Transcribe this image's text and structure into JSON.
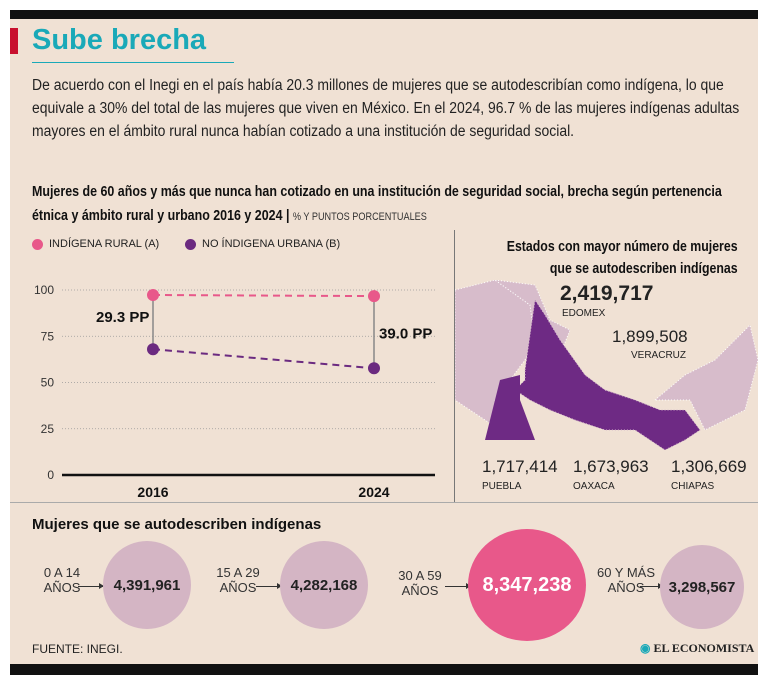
{
  "title": "Sube brecha",
  "intro": "De acuerdo con el Inegi en el país había 20.3 millones de mujeres que se autodescribían como indígena, lo que equivale a 30% del total de las mujeres que viven en México. En el 2024, 96.7 % de las mujeres indígenas adultas mayores en el ámbito rural nunca habían cotizado a una institución de seguridad social.",
  "chart_data": {
    "type": "line",
    "title": "Mujeres de 60 años y más que nunca han cotizado en una institución de seguridad social, brecha según pertenencia étnica y ámbito rural y urbano 2016 y 2024",
    "unit": "% Y PUNTOS PORCENTUALES",
    "categories": [
      "2016",
      "2024"
    ],
    "yticks": [
      "0",
      "25",
      "50",
      "75",
      "100"
    ],
    "ylim": [
      0,
      100
    ],
    "series": [
      {
        "name": "INDÍGENA RURAL (A)",
        "values": [
          97.3,
          96.7
        ],
        "color": "#e8588a"
      },
      {
        "name": "NO ÍNDIGENA URBANA (B)",
        "values": [
          68.0,
          57.7
        ],
        "color": "#6b2a80"
      }
    ],
    "gap_labels": [
      "29.3 PP",
      "39.0 PP"
    ]
  },
  "map": {
    "title_line1": "Estados con mayor número de mujeres",
    "title_line2": "que se autodescriben indígenas",
    "states": [
      {
        "value": "2,419,717",
        "name": "EDOMEX"
      },
      {
        "value": "1,899,508",
        "name": "VERACRUZ"
      },
      {
        "value": "1,717,414",
        "name": "PUEBLA"
      },
      {
        "value": "1,673,963",
        "name": "OAXACA"
      },
      {
        "value": "1,306,669",
        "name": "CHIAPAS"
      }
    ]
  },
  "ages": {
    "title": "Mujeres que se autodescriben indígenas",
    "groups": [
      {
        "label": "0 A 14 AÑOS",
        "value": "4,391,961"
      },
      {
        "label": "15 A 29 AÑOS",
        "value": "4,282,168"
      },
      {
        "label": "30 A 59 AÑOS",
        "value": "8,347,238"
      },
      {
        "label": "60 Y MÁS AÑOS",
        "value": "3,298,567"
      }
    ]
  },
  "source": "FUENTE: INEGI.",
  "brand": "EL ECONOMISTA",
  "colors": {
    "pink": "#e8588a",
    "purple": "#6b2a80",
    "light": "#d4b5c4",
    "teal": "#1aa9b8"
  }
}
